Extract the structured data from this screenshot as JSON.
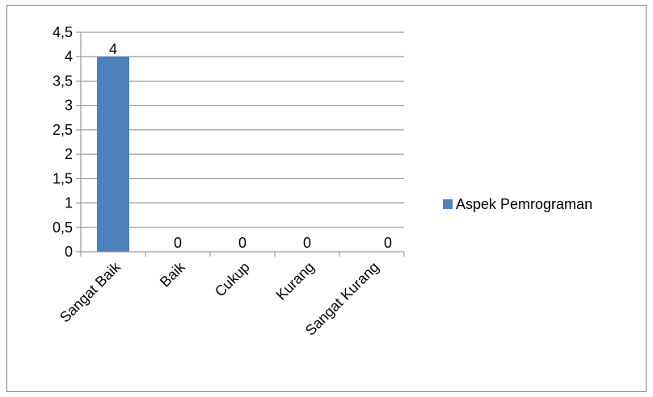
{
  "chart_data": {
    "type": "bar",
    "categories": [
      "Sangat Baik",
      "Baik",
      "Cukup",
      "Kurang",
      "Sangat Kurang"
    ],
    "series": [
      {
        "name": "Aspek Pemrograman",
        "values": [
          4,
          0,
          0,
          0,
          0
        ],
        "color": "#4f81bd"
      }
    ],
    "ylim": [
      0,
      4.5
    ],
    "ytick_step": 0.5,
    "ytick_labels": [
      "0",
      "0,5",
      "1",
      "1,5",
      "2",
      "2,5",
      "3",
      "3,5",
      "4",
      "4,5"
    ],
    "data_labels": [
      "4",
      "0",
      "0",
      "0",
      "0"
    ],
    "grid": true,
    "legend": "right"
  }
}
